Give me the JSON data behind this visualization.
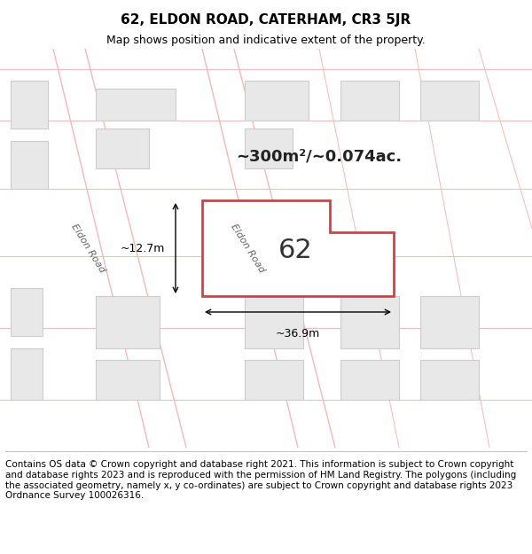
{
  "title_line1": "62, ELDON ROAD, CATERHAM, CR3 5JR",
  "title_line2": "Map shows position and indicative extent of the property.",
  "footer_text": "Contains OS data © Crown copyright and database right 2021. This information is subject to Crown copyright and database rights 2023 and is reproduced with the permission of HM Land Registry. The polygons (including the associated geometry, namely x, y co-ordinates) are subject to Crown copyright and database rights 2023 Ordnance Survey 100026316.",
  "bg_color": "#ffffff",
  "map_bg": "#ffffff",
  "road_color": "#ffffff",
  "grid_line_color": "#f5b8b8",
  "building_fill": "#e8e8e8",
  "building_edge": "#cccccc",
  "highlight_fill": "#ffffff",
  "highlight_edge": "#e8393a",
  "road_label": "Eldon Road",
  "area_text": "~300m²/~0.074ac.",
  "label_62": "62",
  "dim_width": "~36.9m",
  "dim_height": "~12.7m",
  "title_fontsize": 11,
  "subtitle_fontsize": 9,
  "footer_fontsize": 7.5
}
